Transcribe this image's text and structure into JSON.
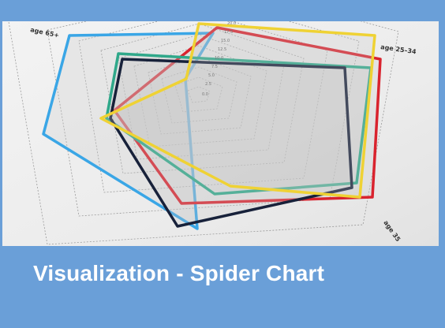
{
  "card": {
    "caption": "Visualization - Spider Chart"
  },
  "photo": {
    "axis_labels": [
      "age 65+",
      "age 25–34",
      "age 35"
    ],
    "scale_labels": [
      "0.0",
      "2.5",
      "5.0",
      "7.5",
      "10.0",
      "12.5",
      "15.0",
      "17.5",
      "20.0"
    ]
  }
}
